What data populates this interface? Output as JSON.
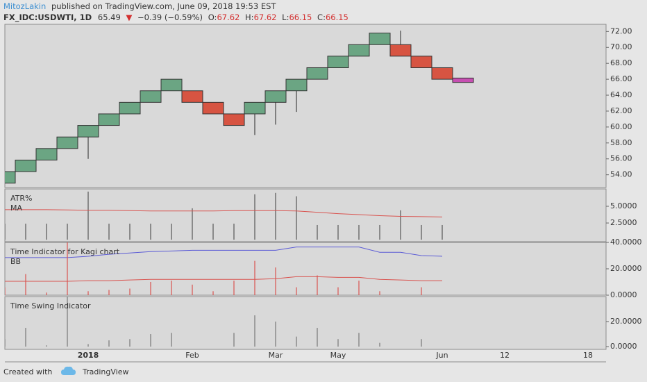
{
  "header": {
    "user": "MitozLakin",
    "published": "published on TradingView.com, June 09, 2018 19:53 EST",
    "symbol": "FX_IDC:USDWTI, 1D",
    "last": "65.49",
    "arrow": "▼",
    "change": "−0.39 (−0.59%)",
    "o_label": "O:",
    "open": "67.62",
    "h_label": "H:",
    "high": "67.62",
    "l_label": "L:",
    "low": "66.15",
    "c_label": "C:",
    "close": "66.15"
  },
  "footer": {
    "created": "Created with",
    "brand": "TradingView"
  },
  "chart_data": [
    {
      "type": "renko",
      "categories": [
        null,
        null,
        null,
        null,
        "2018",
        null,
        null,
        null,
        null,
        "Feb",
        null,
        null,
        null,
        "Mar",
        null,
        null,
        "May",
        null,
        null,
        null,
        null,
        "Jun",
        null,
        null,
        "12",
        null,
        null,
        null,
        "18"
      ],
      "open": [
        52.95,
        54.4,
        55.85,
        57.3,
        58.75,
        60.2,
        61.65,
        63.1,
        64.55,
        64.55,
        63.1,
        61.65,
        61.65,
        63.1,
        64.55,
        66.0,
        67.45,
        68.9,
        70.35,
        70.35,
        68.9,
        67.45,
        66.15,
        null,
        null,
        null,
        null,
        null,
        null
      ],
      "close": [
        54.4,
        55.85,
        57.3,
        58.75,
        60.2,
        61.65,
        63.1,
        64.55,
        66.0,
        63.1,
        61.65,
        60.2,
        63.1,
        64.55,
        66.0,
        67.45,
        68.9,
        70.35,
        71.8,
        68.9,
        67.45,
        66.0,
        65.6,
        null,
        null,
        null,
        null,
        null,
        null
      ],
      "low": [
        null,
        null,
        null,
        null,
        56.0,
        null,
        null,
        null,
        null,
        null,
        null,
        null,
        59.0,
        60.3,
        61.9,
        null,
        null,
        null,
        null,
        null,
        null,
        null,
        null,
        null,
        null,
        null,
        null,
        null,
        null
      ],
      "high": [
        null,
        null,
        null,
        null,
        null,
        null,
        null,
        null,
        null,
        null,
        null,
        null,
        null,
        null,
        null,
        null,
        null,
        null,
        null,
        72.1,
        null,
        null,
        null,
        null,
        null,
        null,
        null,
        null,
        null
      ],
      "up_color": "#6ba583",
      "down_color": "#d75442",
      "last_color": "#c74fb2",
      "ylim": [
        52.4,
        72.9
      ],
      "yticks": [
        {
          "value": 54,
          "label": "54.00"
        },
        {
          "value": 56,
          "label": "56.00"
        },
        {
          "value": 58,
          "label": "58.00"
        },
        {
          "value": 60,
          "label": "60.00"
        },
        {
          "value": 62,
          "label": "62.00"
        },
        {
          "value": 64,
          "label": "64.00"
        },
        {
          "value": 66,
          "label": "66.00"
        },
        {
          "value": 68,
          "label": "68.00"
        },
        {
          "value": 70,
          "label": "70.00"
        },
        {
          "value": 72,
          "label": "72.00"
        }
      ]
    },
    {
      "type": "indicator",
      "series": [
        {
          "name": "ATR%",
          "style": "histogram",
          "color": "#555555",
          "values": [
            2.4,
            2.4,
            2.4,
            2.4,
            7.2,
            2.4,
            2.4,
            2.4,
            2.4,
            4.7,
            2.4,
            2.4,
            6.8,
            7.0,
            6.5,
            2.2,
            2.2,
            2.2,
            2.2,
            4.4,
            2.2,
            2.2,
            null,
            null,
            null,
            null,
            null,
            null,
            null
          ]
        },
        {
          "name": "MA",
          "style": "line",
          "color": "#d9534f",
          "values": [
            4.5,
            4.5,
            4.5,
            4.45,
            4.4,
            4.4,
            4.35,
            4.3,
            4.3,
            4.3,
            4.3,
            4.35,
            4.35,
            4.35,
            4.3,
            4.1,
            3.9,
            3.75,
            3.6,
            3.5,
            3.45,
            3.4,
            null,
            null,
            null,
            null,
            null,
            null,
            null
          ]
        }
      ],
      "ylim": [
        -0.3,
        7.6
      ],
      "yticks": [
        {
          "value": 2.5,
          "label": "2.5000"
        },
        {
          "value": 5,
          "label": "5.0000"
        }
      ]
    },
    {
      "type": "indicator",
      "series": [
        {
          "name": "Time Indicator for Kagi chart",
          "style": "line",
          "color": "#5b5bd6",
          "values": [
            28.5,
            28.5,
            28.5,
            28.5,
            29.5,
            31,
            32,
            33,
            33.5,
            34,
            34,
            34,
            34,
            34,
            36.5,
            36.5,
            36.5,
            36.5,
            32.5,
            32.5,
            30,
            29.5,
            null,
            null,
            null,
            null,
            null,
            null,
            null
          ]
        },
        {
          "name": "BB",
          "style": "line",
          "color": "#d9534f",
          "values": [
            10.5,
            10.5,
            10.5,
            10.5,
            11,
            11,
            11.5,
            12,
            12,
            12,
            12,
            12,
            12,
            12.5,
            14,
            14,
            13.5,
            13.5,
            12,
            11.5,
            11,
            11,
            null,
            null,
            null,
            null,
            null,
            null,
            null
          ]
        },
        {
          "style": "histogram",
          "color": "#d9534f",
          "values": [
            6,
            16,
            2,
            40,
            3,
            4,
            5,
            10,
            11,
            8,
            3,
            11,
            26,
            21,
            6,
            15,
            6,
            11,
            3,
            null,
            6,
            null,
            null,
            null,
            null,
            null,
            null,
            null,
            null
          ]
        }
      ],
      "ylim": [
        0,
        40
      ],
      "yticks": [
        {
          "value": 0,
          "label": "0.0000"
        },
        {
          "value": 20,
          "label": "20.0000"
        },
        {
          "value": 40,
          "label": "40.0000"
        }
      ]
    },
    {
      "type": "indicator",
      "series": [
        {
          "name": "Time Swing Indicator",
          "style": "histogram",
          "color": "#777777",
          "values": [
            6,
            15,
            1,
            40,
            2,
            5,
            6,
            10,
            11,
            null,
            null,
            11,
            25,
            20,
            8,
            15,
            6,
            11,
            3,
            null,
            6,
            null,
            null,
            null,
            null,
            null,
            null,
            null,
            null
          ]
        }
      ],
      "ylim": [
        -2.2,
        40
      ],
      "yticks": [
        {
          "value": 0,
          "label": "0.0000"
        },
        {
          "value": 20,
          "label": "20.0000"
        }
      ]
    }
  ]
}
